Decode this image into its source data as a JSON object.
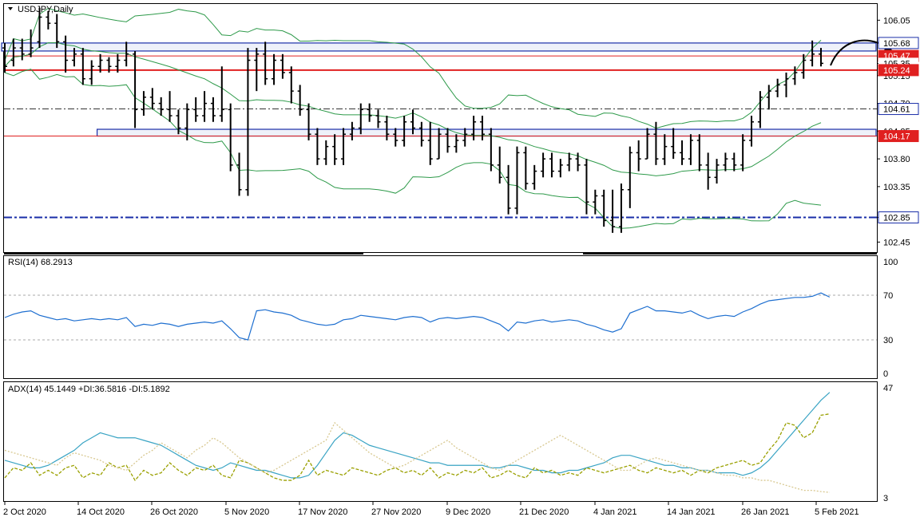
{
  "window": {
    "title": "USDJPY,Daily"
  },
  "chart_data": [
    {
      "type": "candlestick",
      "title": "USDJPY,Daily",
      "ylim": [
        102.3,
        106.3
      ],
      "y_ticks": [
        106.05,
        105.68,
        105.35,
        105.15,
        104.7,
        104.25,
        103.8,
        103.35,
        102.85,
        102.45
      ],
      "price_labels": [
        {
          "value": 105.68,
          "text": "105.68",
          "style": "box"
        },
        {
          "value": 105.47,
          "text": "105.47",
          "style": "red"
        },
        {
          "value": 105.35,
          "text": "105.35",
          "style": "plain"
        },
        {
          "value": 105.24,
          "text": "105.24",
          "style": "red"
        },
        {
          "value": 104.61,
          "text": "104.61",
          "style": "dashed"
        },
        {
          "value": 104.17,
          "text": "104.17",
          "style": "red"
        },
        {
          "value": 102.85,
          "text": "102.85",
          "style": "box"
        }
      ],
      "zones": [
        {
          "from": 105.55,
          "to": 105.68,
          "start_index": 0
        },
        {
          "from": 104.17,
          "to": 104.28,
          "start_index": 11
        }
      ],
      "hlines": [
        {
          "value": 105.47,
          "style": "red-thin"
        },
        {
          "value": 105.24,
          "style": "red-thick"
        },
        {
          "value": 104.61,
          "style": "dashdot"
        },
        {
          "value": 104.17,
          "style": "red-thin"
        },
        {
          "value": 102.85,
          "style": "blue-dashdot"
        }
      ],
      "ohlc": [
        [
          105.6,
          105.68,
          105.2,
          105.3
        ],
        [
          105.4,
          105.75,
          105.3,
          105.6
        ],
        [
          105.6,
          105.75,
          105.4,
          105.5
        ],
        [
          105.5,
          105.9,
          105.45,
          105.6
        ],
        [
          105.7,
          106.25,
          105.6,
          106.1
        ],
        [
          106.1,
          106.2,
          105.9,
          106.0
        ],
        [
          106.0,
          106.15,
          105.6,
          105.7
        ],
        [
          105.7,
          105.8,
          105.2,
          105.4
        ],
        [
          105.4,
          105.6,
          105.3,
          105.5
        ],
        [
          105.5,
          105.6,
          105.0,
          105.1
        ],
        [
          105.1,
          105.4,
          105.0,
          105.3
        ],
        [
          105.3,
          105.5,
          105.2,
          105.4
        ],
        [
          105.4,
          105.45,
          105.2,
          105.3
        ],
        [
          105.3,
          105.5,
          105.2,
          105.4
        ],
        [
          105.4,
          105.7,
          105.3,
          105.5
        ],
        [
          105.5,
          105.55,
          104.3,
          104.6
        ],
        [
          104.6,
          104.9,
          104.5,
          104.8
        ],
        [
          104.8,
          104.95,
          104.6,
          104.7
        ],
        [
          104.7,
          104.8,
          104.5,
          104.6
        ],
        [
          104.6,
          104.9,
          104.4,
          104.5
        ],
        [
          104.5,
          104.6,
          104.2,
          104.3
        ],
        [
          104.3,
          104.7,
          104.1,
          104.6
        ],
        [
          104.6,
          104.8,
          104.4,
          104.5
        ],
        [
          104.5,
          104.9,
          104.4,
          104.7
        ],
        [
          104.7,
          104.8,
          104.4,
          104.5
        ],
        [
          104.5,
          105.3,
          104.4,
          104.6
        ],
        [
          104.6,
          104.7,
          103.6,
          103.7
        ],
        [
          103.7,
          103.9,
          103.2,
          103.3
        ],
        [
          103.3,
          105.6,
          103.2,
          105.4
        ],
        [
          105.4,
          105.6,
          104.9,
          105.5
        ],
        [
          105.5,
          105.7,
          105.0,
          105.1
        ],
        [
          105.1,
          105.5,
          105.0,
          105.4
        ],
        [
          105.4,
          105.5,
          105.1,
          105.2
        ],
        [
          105.2,
          105.3,
          104.7,
          104.9
        ],
        [
          104.9,
          105.0,
          104.5,
          104.6
        ],
        [
          104.6,
          104.7,
          104.1,
          104.2
        ],
        [
          104.2,
          104.3,
          103.7,
          103.8
        ],
        [
          103.8,
          104.1,
          103.7,
          104.0
        ],
        [
          104.0,
          104.2,
          103.7,
          103.8
        ],
        [
          103.8,
          104.3,
          103.7,
          104.2
        ],
        [
          104.2,
          104.4,
          104.1,
          104.3
        ],
        [
          104.3,
          104.7,
          104.2,
          104.6
        ],
        [
          104.6,
          104.7,
          104.4,
          104.5
        ],
        [
          104.5,
          104.6,
          104.3,
          104.4
        ],
        [
          104.4,
          104.5,
          104.1,
          104.2
        ],
        [
          104.2,
          104.3,
          104.0,
          104.1
        ],
        [
          104.1,
          104.5,
          104.0,
          104.4
        ],
        [
          104.4,
          104.6,
          104.2,
          104.3
        ],
        [
          104.3,
          104.4,
          104.0,
          104.1
        ],
        [
          104.1,
          104.4,
          103.7,
          103.8
        ],
        [
          103.8,
          104.3,
          103.8,
          104.2
        ],
        [
          104.2,
          104.3,
          103.9,
          104.0
        ],
        [
          104.0,
          104.2,
          103.9,
          104.1
        ],
        [
          104.1,
          104.3,
          104.0,
          104.2
        ],
        [
          104.2,
          104.5,
          104.1,
          104.4
        ],
        [
          104.4,
          104.5,
          104.1,
          104.2
        ],
        [
          104.2,
          104.3,
          103.6,
          103.7
        ],
        [
          103.7,
          104.0,
          103.4,
          103.5
        ],
        [
          103.5,
          103.7,
          102.9,
          103.0
        ],
        [
          103.0,
          104.0,
          102.9,
          103.9
        ],
        [
          103.9,
          104.0,
          103.3,
          103.4
        ],
        [
          103.4,
          103.7,
          103.3,
          103.6
        ],
        [
          103.6,
          103.9,
          103.5,
          103.8
        ],
        [
          103.8,
          103.9,
          103.5,
          103.6
        ],
        [
          103.6,
          103.8,
          103.5,
          103.7
        ],
        [
          103.7,
          103.9,
          103.6,
          103.8
        ],
        [
          103.8,
          103.9,
          103.6,
          103.7
        ],
        [
          103.7,
          103.8,
          102.9,
          103.1
        ],
        [
          103.1,
          103.3,
          102.9,
          103.2
        ],
        [
          103.2,
          103.3,
          102.7,
          102.8
        ],
        [
          102.8,
          103.3,
          102.6,
          102.7
        ],
        [
          102.7,
          103.4,
          102.6,
          103.3
        ],
        [
          103.3,
          104.0,
          103.0,
          103.9
        ],
        [
          103.9,
          104.1,
          103.6,
          103.8
        ],
        [
          103.8,
          104.3,
          103.8,
          104.2
        ],
        [
          104.2,
          104.4,
          103.7,
          103.8
        ],
        [
          103.8,
          104.2,
          103.7,
          104.0
        ],
        [
          104.0,
          104.3,
          103.8,
          103.9
        ],
        [
          103.9,
          104.1,
          103.7,
          103.8
        ],
        [
          103.8,
          104.2,
          103.7,
          104.1
        ],
        [
          104.1,
          104.2,
          103.6,
          103.7
        ],
        [
          103.7,
          103.9,
          103.3,
          103.5
        ],
        [
          103.5,
          103.8,
          103.4,
          103.7
        ],
        [
          103.7,
          103.9,
          103.6,
          103.8
        ],
        [
          103.8,
          103.9,
          103.6,
          103.7
        ],
        [
          103.7,
          104.2,
          103.6,
          104.1
        ],
        [
          104.1,
          104.5,
          104.0,
          104.4
        ],
        [
          104.4,
          104.9,
          104.3,
          104.8
        ],
        [
          104.8,
          105.0,
          104.6,
          104.9
        ],
        [
          104.9,
          105.1,
          104.8,
          105.0
        ],
        [
          105.0,
          105.2,
          104.8,
          105.1
        ],
        [
          105.1,
          105.3,
          105.0,
          105.2
        ],
        [
          105.2,
          105.5,
          105.1,
          105.4
        ],
        [
          105.4,
          105.72,
          105.3,
          105.5
        ],
        [
          105.5,
          105.6,
          105.3,
          105.35
        ]
      ],
      "x_ticks": [
        "2 Oct 2020",
        "14 Oct 2020",
        "26 Oct 2020",
        "5 Nov 2020",
        "17 Nov 2020",
        "27 Nov 2020",
        "9 Dec 2020",
        "21 Dec 2020",
        "4 Jan 2021",
        "14 Jan 2021",
        "26 Jan 2021",
        "5 Feb 2021"
      ]
    },
    {
      "type": "line",
      "title": "RSI(14) 68.2913",
      "ylim": [
        0,
        100
      ],
      "y_ticks": [
        100,
        70,
        30,
        0
      ],
      "levels": [
        70,
        30
      ],
      "series": [
        {
          "name": "RSI(14)",
          "color": "#1e6fd0",
          "values": [
            50,
            53,
            55,
            56,
            52,
            50,
            48,
            49,
            47,
            48,
            49,
            48,
            49,
            48,
            50,
            42,
            44,
            43,
            45,
            44,
            42,
            44,
            45,
            46,
            45,
            47,
            40,
            32,
            30,
            56,
            57,
            55,
            54,
            52,
            48,
            46,
            44,
            43,
            44,
            48,
            49,
            52,
            51,
            50,
            49,
            48,
            50,
            51,
            50,
            46,
            49,
            50,
            49,
            50,
            51,
            50,
            47,
            44,
            38,
            46,
            45,
            47,
            48,
            46,
            47,
            48,
            47,
            44,
            42,
            39,
            37,
            40,
            54,
            57,
            60,
            56,
            56,
            55,
            54,
            56,
            52,
            49,
            51,
            52,
            51,
            55,
            58,
            62,
            65,
            66,
            67,
            68,
            68,
            69,
            72,
            68.29
          ]
        }
      ]
    },
    {
      "type": "line",
      "title": "ADX(14) 45.1449 +DI:36.5816 -DI:5.1892",
      "ylim": [
        3,
        47
      ],
      "y_ticks": [
        47,
        3
      ],
      "series": [
        {
          "name": "ADX(14)",
          "color": "#3aa4c4",
          "style": "solid",
          "values": [
            18,
            17,
            16,
            15,
            15,
            16,
            18,
            20,
            22,
            25,
            27,
            29,
            28,
            27,
            27,
            27,
            26,
            25,
            24,
            22,
            20,
            18,
            16,
            15,
            14,
            15,
            17,
            16,
            15,
            14,
            14,
            13,
            12,
            11,
            11,
            12,
            16,
            21,
            26,
            29,
            28,
            26,
            24,
            23,
            22,
            21,
            20,
            19,
            18,
            17,
            17,
            16,
            16,
            16,
            16,
            16,
            15,
            15,
            16,
            16,
            15,
            14,
            14,
            13,
            13,
            14,
            14,
            15,
            16,
            17,
            19,
            20,
            20,
            19,
            18,
            17,
            16,
            16,
            15,
            15,
            14,
            14,
            13,
            13,
            13,
            12,
            13,
            15,
            18,
            22,
            26,
            30,
            34,
            38,
            42,
            45.14
          ]
        },
        {
          "name": "+DI",
          "color": "#9aa000",
          "style": "dashed",
          "values": [
            11,
            15,
            14,
            17,
            12,
            14,
            12,
            15,
            16,
            11,
            13,
            12,
            17,
            15,
            16,
            10,
            14,
            12,
            13,
            17,
            14,
            12,
            15,
            14,
            16,
            12,
            11,
            18,
            17,
            15,
            13,
            11,
            10,
            10,
            12,
            18,
            12,
            14,
            13,
            12,
            15,
            14,
            13,
            12,
            14,
            15,
            13,
            14,
            12,
            15,
            11,
            13,
            12,
            14,
            13,
            15,
            11,
            12,
            14,
            12,
            11,
            15,
            13,
            14,
            12,
            13,
            12,
            15,
            14,
            13,
            14,
            15,
            16,
            14,
            13,
            15,
            14,
            13,
            14,
            12,
            14,
            13,
            15,
            16,
            17,
            18,
            16,
            17,
            22,
            26,
            33,
            32,
            27,
            29,
            36,
            36.58
          ]
        },
        {
          "name": "-DI",
          "color": "#d8c890",
          "style": "dotted",
          "values": [
            22,
            21,
            20,
            19,
            18,
            17,
            16,
            19,
            21,
            20,
            19,
            18,
            16,
            15,
            14,
            17,
            20,
            22,
            25,
            23,
            21,
            19,
            22,
            24,
            27,
            25,
            22,
            19,
            17,
            15,
            13,
            14,
            16,
            18,
            20,
            22,
            24,
            26,
            33,
            30,
            27,
            24,
            21,
            19,
            17,
            15,
            16,
            18,
            20,
            22,
            24,
            26,
            23,
            21,
            19,
            17,
            15,
            14,
            16,
            18,
            20,
            22,
            24,
            26,
            28,
            26,
            24,
            22,
            20,
            18,
            16,
            14,
            14,
            16,
            18,
            19,
            18,
            17,
            16,
            15,
            14,
            14,
            13,
            12,
            12,
            11,
            11,
            10,
            10,
            9,
            8,
            7,
            6,
            6,
            5.5,
            5.19
          ]
        }
      ],
      "x_ticks": [
        "2 Oct 2020",
        "14 Oct 2020",
        "26 Oct 2020",
        "5 Nov 2020",
        "17 Nov 2020",
        "27 Nov 2020",
        "9 Dec 2020",
        "21 Dec 2020",
        "4 Jan 2021",
        "14 Jan 2021",
        "26 Jan 2021",
        "5 Feb 2021"
      ]
    }
  ]
}
